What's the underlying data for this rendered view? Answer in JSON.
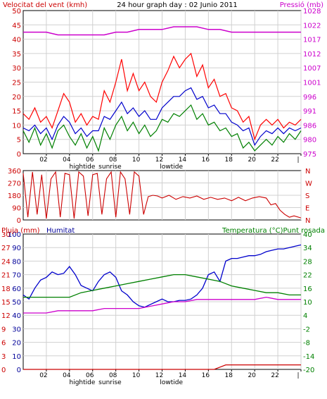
{
  "header": {
    "left_title": "Velocitat del vent (kmh)",
    "center_title": "24 hour graph day : 02 Junio 2011",
    "right_title": "Pressió (mb)"
  },
  "colors": {
    "background": "#ffffff",
    "grid": "#d0d0d0",
    "frame": "#000000",
    "wind_red": "#ff0000",
    "wind_blue": "#0000cc",
    "wind_green": "#008000",
    "pressure": "#cc00cc",
    "direction": "#cc0000",
    "rain": "#cc0000",
    "humidity": "#0000cc",
    "temperature": "#008000",
    "dewpoint": "#cc00cc",
    "axis_text_red": "#cc0000",
    "axis_text_blue": "#000099",
    "axis_text_green": "#008000",
    "axis_text_magenta": "#cc00cc"
  },
  "chart_data": [
    {
      "id": "wind",
      "type": "line",
      "x_range": [
        0,
        24
      ],
      "x_ticks": [
        "02",
        "04",
        "06",
        "08",
        "10",
        "12",
        "14",
        "16",
        "18",
        "20",
        "22",
        "|"
      ],
      "annotations_top": [
        "hightide",
        "sunrise",
        "lowtide"
      ],
      "ylim_left": [
        0,
        50
      ],
      "yticks_left": [
        "0",
        "5",
        "10",
        "15",
        "20",
        "25",
        "30",
        "35",
        "40",
        "45",
        "50"
      ],
      "ylim_right": [
        975,
        1028
      ],
      "yticks_right": [
        "975",
        "980",
        "986",
        "991",
        "996",
        "1001",
        "1007",
        "1012",
        "1017",
        "1022",
        "1028"
      ],
      "left_axis_title": "Velocitat del vent (kmh)",
      "right_axis_title": "Pressió (mb)",
      "series": [
        {
          "axis": "left",
          "color": "#ff0000",
          "x": [
            0,
            0.5,
            1,
            1.5,
            2,
            2.5,
            3,
            3.5,
            4,
            4.5,
            5,
            5.5,
            6,
            6.5,
            7,
            7.5,
            8,
            8.5,
            9,
            9.5,
            10,
            10.5,
            11,
            11.5,
            12,
            12.5,
            13,
            13.5,
            14,
            14.5,
            15,
            15.5,
            16,
            16.5,
            17,
            17.5,
            18,
            18.5,
            19,
            19.5,
            20,
            20.5,
            21,
            21.5,
            22,
            22.5,
            23,
            23.5,
            24
          ],
          "values": [
            14,
            12,
            16,
            11,
            13,
            9,
            15,
            21,
            18,
            11,
            14,
            10,
            13,
            12,
            22,
            18,
            25,
            33,
            22,
            28,
            22,
            25,
            20,
            18,
            25,
            29,
            34,
            30,
            33,
            35,
            27,
            31,
            23,
            26,
            20,
            21,
            16,
            15,
            11,
            13,
            5,
            10,
            12,
            10,
            12,
            9,
            11,
            10,
            12
          ]
        },
        {
          "axis": "left",
          "color": "#0000cc",
          "x": [
            0,
            0.5,
            1,
            1.5,
            2,
            2.5,
            3,
            3.5,
            4,
            4.5,
            5,
            5.5,
            6,
            6.5,
            7,
            7.5,
            8,
            8.5,
            9,
            9.5,
            10,
            10.5,
            11,
            11.5,
            12,
            12.5,
            13,
            13.5,
            14,
            14.5,
            15,
            15.5,
            16,
            16.5,
            17,
            17.5,
            18,
            18.5,
            19,
            19.5,
            20,
            20.5,
            21,
            21.5,
            22,
            22.5,
            23,
            23.5,
            24
          ],
          "values": [
            9,
            8,
            10,
            7,
            9,
            5,
            10,
            13,
            11,
            7,
            9,
            6,
            8,
            8,
            13,
            12,
            15,
            18,
            14,
            16,
            13,
            15,
            12,
            12,
            16,
            18,
            20,
            20,
            22,
            23,
            19,
            20,
            16,
            17,
            14,
            14,
            11,
            10,
            8,
            9,
            3,
            6,
            8,
            7,
            9,
            7,
            9,
            8,
            9
          ]
        },
        {
          "axis": "left",
          "color": "#008000",
          "x": [
            0,
            0.5,
            1,
            1.5,
            2,
            2.5,
            3,
            3.5,
            4,
            4.5,
            5,
            5.5,
            6,
            6.5,
            7,
            7.5,
            8,
            8.5,
            9,
            9.5,
            10,
            10.5,
            11,
            11.5,
            12,
            12.5,
            13,
            13.5,
            14,
            14.5,
            15,
            15.5,
            16,
            16.5,
            17,
            17.5,
            18,
            18.5,
            19,
            19.5,
            20,
            20.5,
            21,
            21.5,
            22,
            22.5,
            23,
            23.5,
            24
          ],
          "values": [
            8,
            4,
            9,
            3,
            7,
            2,
            8,
            10,
            6,
            3,
            7,
            2,
            6,
            1,
            9,
            5,
            10,
            13,
            8,
            11,
            7,
            10,
            6,
            8,
            12,
            11,
            14,
            13,
            15,
            17,
            12,
            14,
            10,
            11,
            8,
            9,
            6,
            7,
            2,
            4,
            1,
            3,
            5,
            3,
            6,
            4,
            7,
            5,
            8
          ]
        },
        {
          "axis": "right",
          "color": "#cc00cc",
          "x": [
            0,
            1,
            2,
            3,
            4,
            5,
            6,
            7,
            8,
            9,
            10,
            11,
            12,
            13,
            14,
            15,
            16,
            17,
            18,
            19,
            20,
            21,
            22,
            23,
            24
          ],
          "values": [
            1020,
            1020,
            1020,
            1019,
            1019,
            1019,
            1019,
            1019,
            1020,
            1020,
            1021,
            1021,
            1021,
            1022,
            1022,
            1022,
            1021,
            1021,
            1020,
            1020,
            1020,
            1020,
            1020,
            1020,
            1020
          ]
        }
      ]
    },
    {
      "id": "direction",
      "type": "line",
      "x_range": [
        0,
        24
      ],
      "ylim_left": [
        0,
        360
      ],
      "yticks_left": [
        "0",
        "90",
        "180",
        "270",
        "360"
      ],
      "right_labels": [
        "N",
        "W",
        "S",
        "E",
        "N"
      ],
      "series": [
        {
          "axis": "left",
          "color": "#cc0000",
          "x": [
            0,
            0.4,
            0.8,
            1.2,
            1.6,
            2,
            2.4,
            2.8,
            3.2,
            3.6,
            4,
            4.4,
            4.8,
            5.2,
            5.6,
            6,
            6.4,
            6.8,
            7.2,
            7.6,
            8,
            8.4,
            8.8,
            9.2,
            9.6,
            10,
            10.4,
            10.8,
            11.2,
            11.6,
            12,
            12.6,
            13.2,
            13.8,
            14.4,
            15,
            15.6,
            16.2,
            16.8,
            17.4,
            18,
            18.6,
            19.2,
            19.8,
            20.4,
            21,
            21.4,
            21.8,
            22.2,
            22.6,
            23,
            23.4,
            24
          ],
          "values": [
            340,
            20,
            350,
            40,
            330,
            10,
            300,
            350,
            20,
            340,
            330,
            10,
            350,
            320,
            30,
            330,
            340,
            40,
            300,
            350,
            20,
            350,
            300,
            40,
            350,
            320,
            40,
            170,
            180,
            175,
            160,
            180,
            150,
            170,
            160,
            175,
            150,
            165,
            150,
            160,
            140,
            165,
            140,
            160,
            170,
            160,
            110,
            120,
            70,
            40,
            20,
            30,
            15
          ]
        }
      ]
    },
    {
      "id": "humidity",
      "type": "line",
      "x_range": [
        0,
        24
      ],
      "x_ticks": [
        "02",
        "04",
        "06",
        "08",
        "10",
        "12",
        "14",
        "16",
        "18",
        "20",
        "22",
        "|"
      ],
      "annotations_bottom": [
        "hightide",
        "sunrise",
        "lowtide"
      ],
      "left_axis_title_rain": "Pluja (mm)",
      "left_axis_title_humidity": "Humitat",
      "right_axis_title": "Temperatura (°C)Punt rosada",
      "ylim_rain": [
        0,
        30
      ],
      "yticks_rain": [
        "0",
        "3",
        "6",
        "9",
        "12",
        "15",
        "18",
        "21",
        "24",
        "27",
        "30"
      ],
      "ylim_humidity": [
        0,
        100
      ],
      "yticks_humidity": [
        "0",
        "10",
        "20",
        "30",
        "40",
        "50",
        "60",
        "70",
        "80",
        "90",
        "100"
      ],
      "ylim_right": [
        -20,
        40
      ],
      "yticks_right": [
        "-20",
        "-14",
        "-8",
        "-2",
        "4",
        "10",
        "16",
        "22",
        "28",
        "34",
        "40"
      ],
      "series": [
        {
          "axis": "humidity",
          "color": "#0000cc",
          "x": [
            0,
            0.5,
            1,
            1.5,
            2,
            2.5,
            3,
            3.5,
            4,
            4.5,
            5,
            5.5,
            6,
            6.5,
            7,
            7.5,
            8,
            8.5,
            9,
            9.5,
            10,
            10.5,
            11,
            11.5,
            12,
            12.5,
            13,
            13.5,
            14,
            14.5,
            15,
            15.5,
            16,
            16.5,
            17,
            17.5,
            18,
            18.5,
            19,
            19.5,
            20,
            20.5,
            21,
            21.5,
            22,
            22.5,
            23,
            23.5,
            24
          ],
          "values": [
            55,
            52,
            60,
            66,
            68,
            72,
            70,
            71,
            76,
            70,
            62,
            60,
            58,
            65,
            70,
            72,
            68,
            58,
            55,
            50,
            47,
            46,
            48,
            50,
            52,
            50,
            50,
            51,
            51,
            52,
            55,
            60,
            70,
            72,
            65,
            80,
            82,
            82,
            83,
            84,
            84,
            85,
            87,
            88,
            89,
            89,
            90,
            91,
            92
          ]
        },
        {
          "axis": "right",
          "color": "#008000",
          "x": [
            0,
            1,
            2,
            3,
            4,
            5,
            6,
            7,
            8,
            9,
            10,
            11,
            12,
            13,
            14,
            15,
            16,
            17,
            18,
            19,
            20,
            21,
            22,
            23,
            24
          ],
          "values": [
            12,
            12,
            12,
            12,
            12,
            14,
            15,
            16,
            17,
            18,
            19,
            20,
            21,
            22,
            22,
            21,
            20,
            19,
            17,
            16,
            15,
            14,
            14,
            13,
            13
          ]
        },
        {
          "axis": "right",
          "color": "#cc00cc",
          "x": [
            0,
            1,
            2,
            3,
            4,
            5,
            6,
            7,
            8,
            9,
            10,
            11,
            12,
            13,
            14,
            15,
            16,
            17,
            18,
            19,
            20,
            21,
            22,
            23,
            24
          ],
          "values": [
            5,
            5,
            5,
            6,
            6,
            6,
            6,
            7,
            7,
            7,
            7,
            8,
            9,
            10,
            10,
            11,
            11,
            11,
            11,
            11,
            11,
            12,
            11,
            11,
            11
          ]
        },
        {
          "axis": "rain",
          "color": "#cc0000",
          "x": [
            0,
            16.5,
            17,
            17.5,
            18,
            24
          ],
          "values": [
            0,
            0,
            0.5,
            1,
            1,
            1
          ]
        }
      ]
    }
  ]
}
